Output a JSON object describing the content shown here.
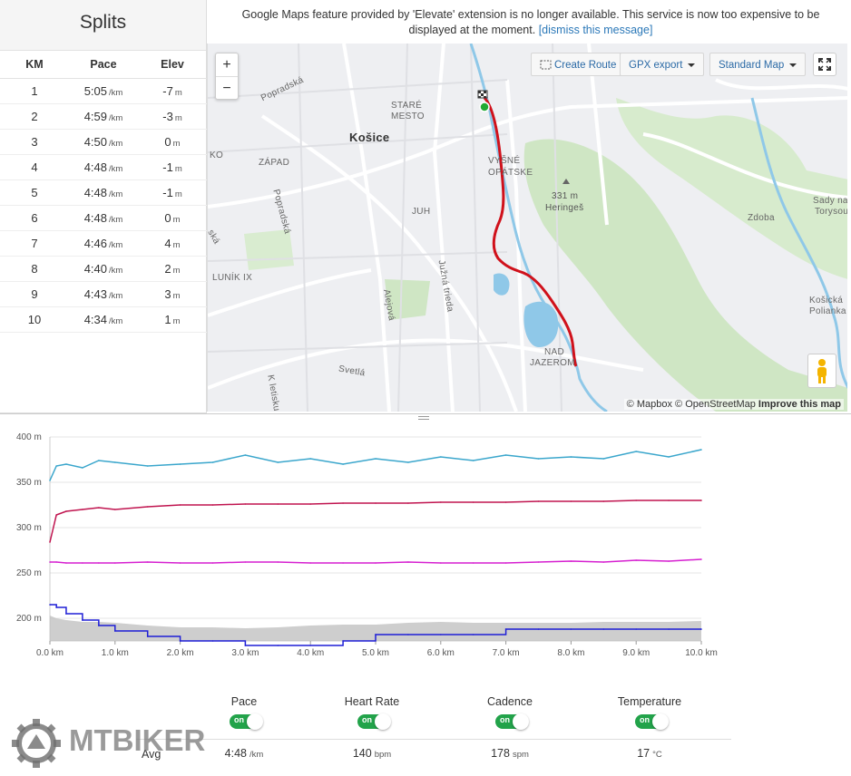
{
  "splits": {
    "title": "Splits",
    "columns": [
      "KM",
      "Pace",
      "Elev"
    ],
    "pace_unit": "/km",
    "elev_unit": "m",
    "rows": [
      {
        "km": "1",
        "pace": "5:05",
        "elev": "-7"
      },
      {
        "km": "2",
        "pace": "4:59",
        "elev": "-3"
      },
      {
        "km": "3",
        "pace": "4:50",
        "elev": "0"
      },
      {
        "km": "4",
        "pace": "4:48",
        "elev": "-1"
      },
      {
        "km": "5",
        "pace": "4:48",
        "elev": "-1"
      },
      {
        "km": "6",
        "pace": "4:48",
        "elev": "0"
      },
      {
        "km": "7",
        "pace": "4:46",
        "elev": "4"
      },
      {
        "km": "8",
        "pace": "4:40",
        "elev": "2"
      },
      {
        "km": "9",
        "pace": "4:43",
        "elev": "3"
      },
      {
        "km": "10",
        "pace": "4:34",
        "elev": "1"
      }
    ]
  },
  "notice": {
    "text": "Google Maps feature provided by 'Elevate' extension is no longer available. This service is now too expensive to be displayed at the moment.",
    "link": "[dismiss this message]"
  },
  "map": {
    "zoom_in": "+",
    "zoom_out": "−",
    "create_route": "Create Route",
    "gpx_export": "GPX export",
    "map_type": "Standard Map",
    "attribution": {
      "mapbox": "© Mapbox",
      "osm": "© OpenStreetMap",
      "improve": "Improve this map"
    },
    "labels": {
      "popradska": "Popradská",
      "stare_mesto_1": "STARÉ",
      "stare_mesto_2": "MESTO",
      "kosice": "Košice",
      "ko": "KO",
      "zapad": "ZÁPAD",
      "vysne_1": "VYŠNÉ",
      "vysne_2": "OPÁTSKE",
      "peak_1": "331 m",
      "peak_2": "Heringeš",
      "juh": "JUH",
      "zdoba": "Zdoba",
      "sady_1": "Sady nad",
      "sady_2": "Torysou",
      "popradska2": "Popradská",
      "ska": "ská",
      "lunik": "LUNÍK IX",
      "juzna": "Južná trieda",
      "alejova": "Alejová",
      "kosicka_1": "Košická",
      "kosicka_2": "Polianka",
      "nad_1": "NAD",
      "nad_2": "JAZEROM",
      "letna": "K letisku",
      "svetla": "Svetlá"
    },
    "colors": {
      "route": "#d0111b",
      "water": "#8fc8e8",
      "park": "#cfe6c4",
      "start": "#22aa33"
    }
  },
  "chart_data": {
    "type": "line",
    "title": "",
    "xlabel": "",
    "ylabel": "",
    "x_ticks": [
      "0.0 km",
      "1.0 km",
      "2.0 km",
      "3.0 km",
      "4.0 km",
      "5.0 km",
      "6.0 km",
      "7.0 km",
      "8.0 km",
      "9.0 km",
      "10.0 km"
    ],
    "y_ticks": [
      "200 m",
      "250 m",
      "300 m",
      "350 m",
      "400 m"
    ],
    "xlim": [
      0,
      10
    ],
    "ylim": [
      175,
      400
    ],
    "x": [
      0,
      0.1,
      0.25,
      0.5,
      0.75,
      1,
      1.5,
      2,
      2.5,
      3,
      3.5,
      4,
      4.5,
      5,
      5.5,
      6,
      6.5,
      7,
      7.5,
      8,
      8.5,
      9,
      9.5,
      10
    ],
    "series": [
      {
        "name": "Heart rate",
        "color": "#3aa6cc",
        "values": [
          352,
          368,
          370,
          366,
          374,
          372,
          368,
          370,
          372,
          380,
          372,
          376,
          370,
          376,
          372,
          378,
          374,
          380,
          376,
          378,
          376,
          384,
          378,
          386
        ]
      },
      {
        "name": "Pace",
        "color": "#c0144f",
        "values": [
          284,
          314,
          318,
          320,
          322,
          320,
          323,
          325,
          325,
          326,
          326,
          326,
          327,
          327,
          327,
          328,
          328,
          328,
          329,
          329,
          329,
          330,
          330,
          330
        ]
      },
      {
        "name": "Cadence",
        "color": "#d61fd0",
        "values": [
          262,
          262,
          261,
          261,
          261,
          261,
          262,
          261,
          261,
          262,
          262,
          261,
          261,
          261,
          262,
          261,
          261,
          261,
          262,
          263,
          262,
          264,
          263,
          265
        ]
      },
      {
        "name": "Elevation",
        "color": "#bdbdbd",
        "type": "area",
        "values": [
          203,
          200,
          198,
          196,
          196,
          195,
          192,
          190,
          190,
          189,
          190,
          192,
          193,
          193,
          195,
          196,
          195,
          195,
          195,
          195,
          196,
          196,
          196,
          197
        ]
      },
      {
        "name": "Temperature",
        "color": "#1f1fd6",
        "step": true,
        "values": [
          215,
          212,
          205,
          198,
          192,
          186,
          180,
          175,
          175,
          170,
          170,
          170,
          175,
          182,
          182,
          182,
          182,
          188,
          188,
          188,
          188,
          188,
          188,
          188
        ]
      }
    ]
  },
  "stats": {
    "avg_label": "Avg",
    "toggle_label": "on",
    "items": [
      {
        "label": "Pace",
        "value": "4:48",
        "unit": "/km"
      },
      {
        "label": "Heart Rate",
        "value": "140",
        "unit": "bpm"
      },
      {
        "label": "Cadence",
        "value": "178",
        "unit": "spm"
      },
      {
        "label": "Temperature",
        "value": "17",
        "unit": "°C"
      }
    ]
  },
  "watermark": {
    "text": "MTBIKER"
  }
}
